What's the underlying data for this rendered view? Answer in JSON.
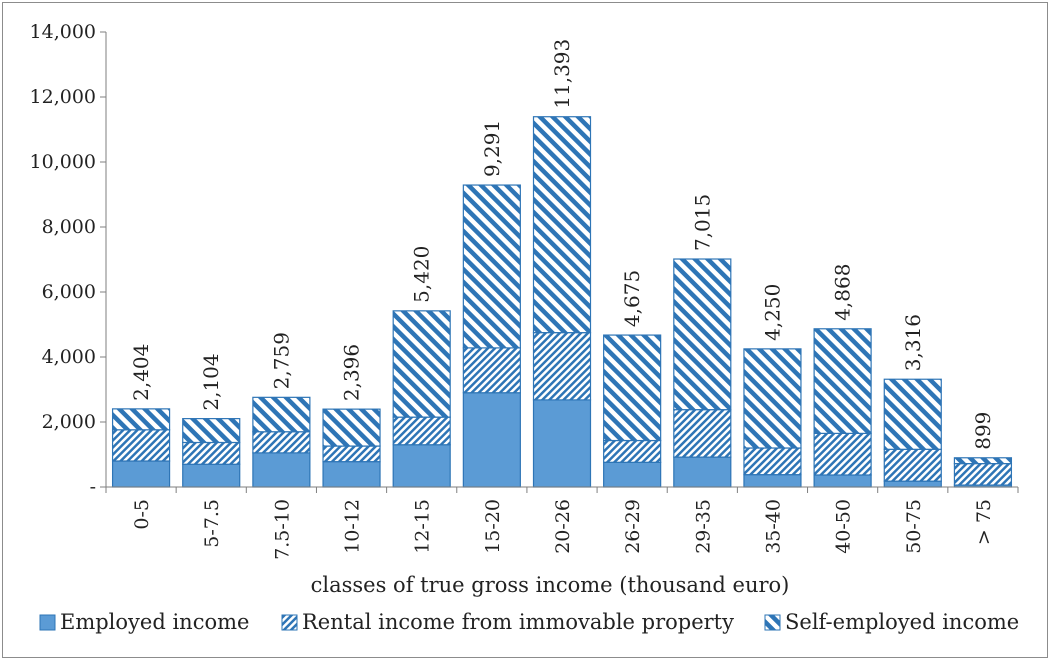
{
  "chart_data": {
    "type": "bar",
    "stacked": true,
    "xlabel": "classes of true gross income (thousand euro)",
    "ylabel": "",
    "ylim": [
      0,
      14000
    ],
    "y_ticks": [
      {
        "value": 0,
        "label": "-"
      },
      {
        "value": 2000,
        "label": "2,000"
      },
      {
        "value": 4000,
        "label": "4,000"
      },
      {
        "value": 6000,
        "label": "6,000"
      },
      {
        "value": 8000,
        "label": "8,000"
      },
      {
        "value": 10000,
        "label": "10,000"
      },
      {
        "value": 12000,
        "label": "12,000"
      },
      {
        "value": 14000,
        "label": "14,000"
      }
    ],
    "categories": [
      "0-5",
      "5-7.5",
      "7.5-10",
      "10-12",
      "12-15",
      "15-20",
      "20-26",
      "26-29",
      "29-35",
      "35-40",
      "40-50",
      "50-75",
      "> 75"
    ],
    "series": [
      {
        "name": "Employed income",
        "fill": "solid",
        "color": "#5b9bd5",
        "values": [
          800,
          700,
          1050,
          780,
          1300,
          2900,
          2680,
          760,
          920,
          380,
          370,
          180,
          60
        ]
      },
      {
        "name": "Rental income from immovable property",
        "fill": "hatch-back",
        "color": "#2e75b6",
        "values": [
          960,
          670,
          650,
          480,
          850,
          1380,
          2070,
          670,
          1460,
          820,
          1280,
          980,
          660
        ]
      },
      {
        "name": "Self-employed income",
        "fill": "hatch-forward",
        "color": "#2e75b6",
        "values": [
          644,
          734,
          1059,
          1136,
          3270,
          5011,
          6643,
          3245,
          4635,
          3050,
          3218,
          2156,
          179
        ]
      }
    ],
    "totals": [
      2404,
      2104,
      2759,
      2396,
      5420,
      9291,
      11393,
      4675,
      7015,
      4250,
      4868,
      3316,
      899
    ],
    "total_labels": [
      "2,404",
      "2,104",
      "2,759",
      "2,396",
      "5,420",
      "9,291",
      "11,393",
      "4,675",
      "7,015",
      "4,250",
      "4,868",
      "3,316",
      "899"
    ],
    "legend_position": "bottom",
    "grid": false
  },
  "colors": {
    "employed": "#5b9bd5",
    "hatch": "#2e75b6",
    "bar_border": "#2e75b6",
    "axis": "#7f7f7f"
  }
}
